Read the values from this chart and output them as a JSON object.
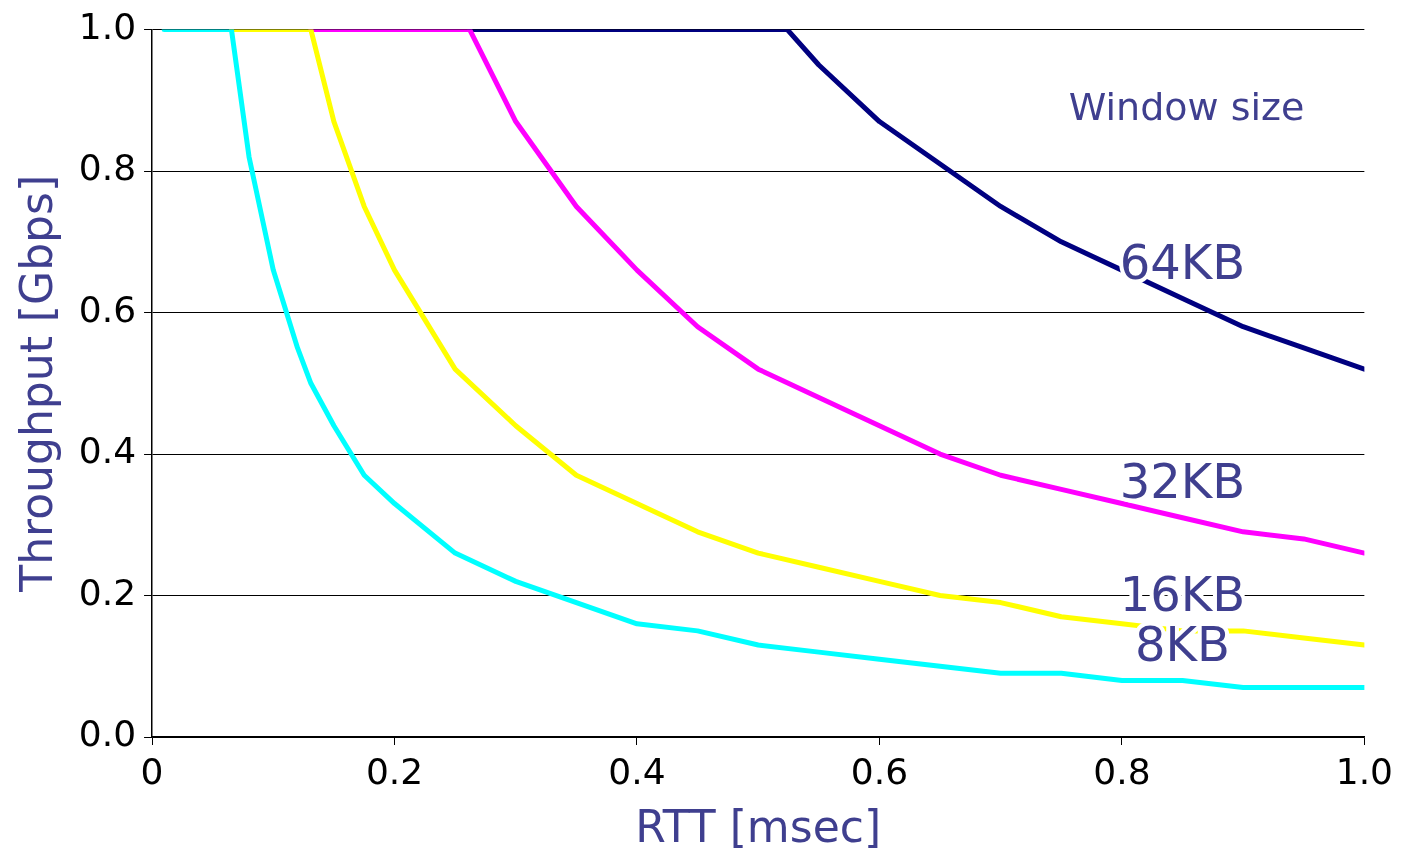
{
  "chart_data": {
    "type": "line",
    "xlabel": "RTT [msec]",
    "ylabel": "Throughput [Gbps]",
    "legend_title": "Window size",
    "xlim": [
      0,
      1
    ],
    "ylim": [
      0,
      1
    ],
    "xticks": [
      0,
      0.2,
      0.4,
      0.6,
      0.8,
      {
        "value": 1,
        "label": "1.0"
      }
    ],
    "yticks": [
      {
        "value": 0,
        "label": "0.0"
      },
      0.2,
      0.4,
      0.6,
      0.8,
      {
        "value": 1,
        "label": "1.0"
      }
    ],
    "grid": "y",
    "legend": false,
    "marker": "none",
    "line_style": "solid",
    "series": [
      {
        "name": "8KB",
        "color": "#00ffff",
        "x": [
          0.01,
          0.05,
          0.0655,
          0.08,
          0.1,
          0.12,
          0.131,
          0.15,
          0.175,
          0.2,
          0.25,
          0.3,
          0.35,
          0.4,
          0.45,
          0.5,
          0.55,
          0.6,
          0.65,
          0.7,
          0.75,
          0.8,
          0.85,
          0.9,
          0.95,
          1.0
        ],
        "values": [
          1,
          1,
          1,
          0.82,
          0.66,
          0.55,
          0.5,
          0.44,
          0.37,
          0.33,
          0.26,
          0.22,
          0.19,
          0.16,
          0.15,
          0.13,
          0.12,
          0.11,
          0.1,
          0.09,
          0.09,
          0.08,
          0.08,
          0.07,
          0.07,
          0.07
        ]
      },
      {
        "name": "16KB",
        "color": "#ffff00",
        "x": [
          0.0655,
          0.131,
          0.15,
          0.175,
          0.2,
          0.25,
          0.3,
          0.35,
          0.4,
          0.45,
          0.5,
          0.55,
          0.6,
          0.65,
          0.7,
          0.75,
          0.8,
          0.85,
          0.9,
          0.95,
          1.0
        ],
        "values": [
          1,
          1,
          0.87,
          0.75,
          0.66,
          0.52,
          0.44,
          0.37,
          0.33,
          0.29,
          0.26,
          0.24,
          0.22,
          0.2,
          0.19,
          0.17,
          0.16,
          0.15,
          0.15,
          0.14,
          0.13
        ]
      },
      {
        "name": "32KB",
        "color": "#ff00ff",
        "x": [
          0.131,
          0.262,
          0.3,
          0.35,
          0.4,
          0.45,
          0.5,
          0.55,
          0.6,
          0.65,
          0.7,
          0.75,
          0.8,
          0.85,
          0.9,
          0.95,
          1.0
        ],
        "values": [
          1,
          1,
          0.87,
          0.75,
          0.66,
          0.58,
          0.52,
          0.48,
          0.44,
          0.4,
          0.37,
          0.35,
          0.33,
          0.31,
          0.29,
          0.28,
          0.26
        ]
      },
      {
        "name": "64KB",
        "color": "#000080",
        "x": [
          0.262,
          0.524,
          0.55,
          0.6,
          0.65,
          0.7,
          0.75,
          0.8,
          0.85,
          0.9,
          0.95,
          1.0
        ],
        "values": [
          1,
          1,
          0.95,
          0.87,
          0.81,
          0.75,
          0.7,
          0.66,
          0.62,
          0.58,
          0.55,
          0.52
        ]
      }
    ]
  }
}
